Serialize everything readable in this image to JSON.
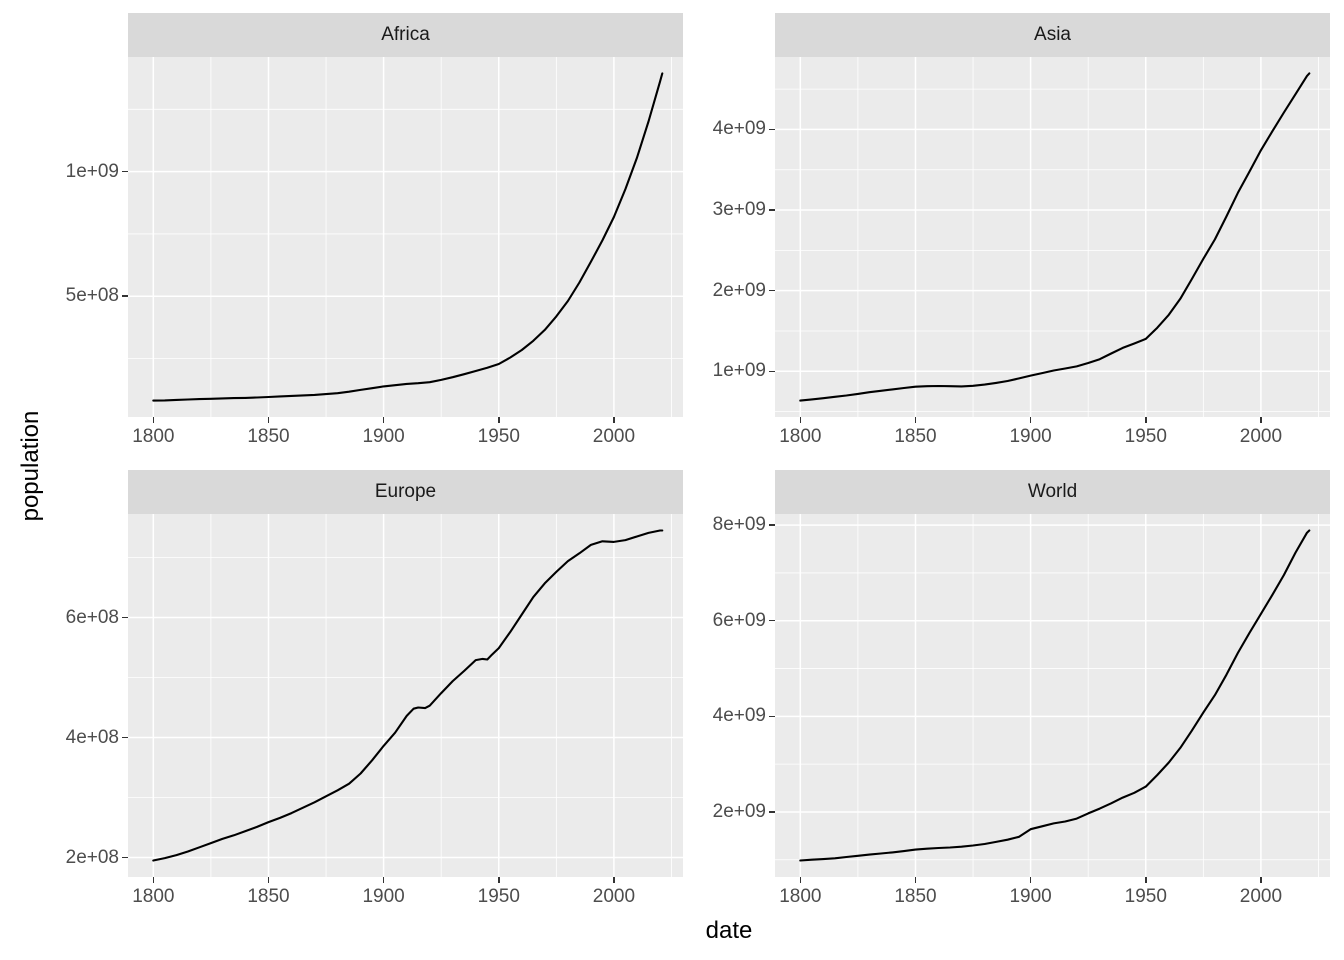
{
  "figure": {
    "y_axis_title": "population",
    "x_axis_title": "date",
    "colors": {
      "background": "#ffffff",
      "panel_bg": "#ebebeb",
      "strip_bg": "#d9d9d9",
      "grid": "#ffffff",
      "line": "#000000",
      "tick_mark": "#333333",
      "tick_text": "#4d4d4d",
      "strip_text": "#1a1a1a",
      "axis_title_text": "#000000"
    }
  },
  "chart_data": [
    {
      "type": "line",
      "title": "Africa",
      "xlabel": "date",
      "ylabel": "population",
      "grid": true,
      "legend": "none",
      "xlim": [
        1789,
        2030
      ],
      "ylim": [
        15300000,
        1460000000
      ],
      "x_ticks": {
        "values": [
          1800,
          1850,
          1900,
          1950,
          2000
        ],
        "labels": [
          "1800",
          "1850",
          "1900",
          "1950",
          "2000"
        ]
      },
      "x_minor_ticks": [
        1825,
        1875,
        1925,
        1975,
        2025
      ],
      "y_ticks": {
        "values": [
          500000000,
          1000000000
        ],
        "labels": [
          "5e+08",
          "1e+09"
        ]
      },
      "y_minor_ticks": [
        250000000,
        750000000,
        1250000000
      ],
      "x": [
        1800,
        1805,
        1810,
        1815,
        1820,
        1825,
        1830,
        1835,
        1840,
        1845,
        1850,
        1855,
        1860,
        1865,
        1870,
        1875,
        1880,
        1885,
        1890,
        1895,
        1900,
        1905,
        1910,
        1915,
        1920,
        1925,
        1930,
        1935,
        1940,
        1945,
        1950,
        1955,
        1960,
        1965,
        1970,
        1975,
        1980,
        1985,
        1990,
        1995,
        2000,
        2005,
        2010,
        2015,
        2020,
        2021
      ],
      "values": [
        81000000,
        82000000,
        84000000,
        85500000,
        87000000,
        88500000,
        90000000,
        91000000,
        92000000,
        93500000,
        95500000,
        98000000,
        100000000,
        102000000,
        104000000,
        107000000,
        111000000,
        117000000,
        124000000,
        131000000,
        138000000,
        143000000,
        148000000,
        151000000,
        155000000,
        164000000,
        175000000,
        187000000,
        200000000,
        213000000,
        228000000,
        254000000,
        284000000,
        321000000,
        365000000,
        419000000,
        481000000,
        555000000,
        638000000,
        724000000,
        818000000,
        930000000,
        1055000000,
        1201000000,
        1361000000,
        1394000000
      ]
    },
    {
      "type": "line",
      "title": "Asia",
      "xlabel": "date",
      "ylabel": "population",
      "grid": true,
      "legend": "none",
      "xlim": [
        1789,
        2030
      ],
      "ylim": [
        433000000,
        4898000000
      ],
      "x_ticks": {
        "values": [
          1800,
          1850,
          1900,
          1950,
          2000
        ],
        "labels": [
          "1800",
          "1850",
          "1900",
          "1950",
          "2000"
        ]
      },
      "x_minor_ticks": [
        1825,
        1875,
        1925,
        1975,
        2025
      ],
      "y_ticks": {
        "values": [
          1000000000,
          2000000000,
          3000000000,
          4000000000
        ],
        "labels": [
          "1e+09",
          "2e+09",
          "3e+09",
          "4e+09"
        ]
      },
      "y_minor_ticks": [
        500000000,
        1500000000,
        2500000000,
        3500000000,
        4500000000
      ],
      "x": [
        1800,
        1805,
        1810,
        1815,
        1820,
        1825,
        1830,
        1835,
        1840,
        1845,
        1850,
        1855,
        1860,
        1865,
        1870,
        1875,
        1880,
        1885,
        1890,
        1895,
        1900,
        1905,
        1910,
        1915,
        1920,
        1925,
        1930,
        1935,
        1940,
        1945,
        1950,
        1955,
        1960,
        1965,
        1970,
        1975,
        1980,
        1985,
        1990,
        1995,
        2000,
        2005,
        2010,
        2015,
        2020,
        2021
      ],
      "values": [
        636000000,
        651000000,
        666000000,
        683000000,
        700000000,
        720000000,
        740000000,
        758000000,
        775000000,
        793000000,
        809000000,
        815000000,
        818000000,
        815000000,
        812000000,
        820000000,
        835000000,
        856000000,
        880000000,
        912000000,
        947000000,
        978000000,
        1010000000,
        1035000000,
        1060000000,
        1103000000,
        1150000000,
        1220000000,
        1290000000,
        1345000000,
        1402000000,
        1541000000,
        1700000000,
        1899000000,
        2143000000,
        2394000000,
        2636000000,
        2920000000,
        3214000000,
        3475000000,
        3741000000,
        3978000000,
        4210000000,
        4437000000,
        4664000000,
        4695000000
      ]
    },
    {
      "type": "line",
      "title": "Europe",
      "xlabel": "date",
      "ylabel": "population",
      "grid": true,
      "legend": "none",
      "xlim": [
        1789,
        2030
      ],
      "ylim": [
        167500000,
        772500000
      ],
      "x_ticks": {
        "values": [
          1800,
          1850,
          1900,
          1950,
          2000
        ],
        "labels": [
          "1800",
          "1850",
          "1900",
          "1950",
          "2000"
        ]
      },
      "x_minor_ticks": [
        1825,
        1875,
        1925,
        1975,
        2025
      ],
      "y_ticks": {
        "values": [
          200000000,
          400000000,
          600000000
        ],
        "labels": [
          "2e+08",
          "4e+08",
          "6e+08"
        ]
      },
      "y_minor_ticks": [
        300000000,
        500000000,
        700000000
      ],
      "x": [
        1800,
        1805,
        1810,
        1815,
        1820,
        1825,
        1830,
        1835,
        1840,
        1845,
        1850,
        1855,
        1860,
        1865,
        1870,
        1875,
        1880,
        1885,
        1890,
        1895,
        1900,
        1905,
        1910,
        1913,
        1915,
        1918,
        1920,
        1925,
        1930,
        1935,
        1940,
        1943,
        1945,
        1947,
        1950,
        1955,
        1960,
        1965,
        1970,
        1975,
        1980,
        1985,
        1990,
        1995,
        2000,
        2005,
        2010,
        2015,
        2020,
        2021
      ],
      "values": [
        195000000,
        199000000,
        204000000,
        210000000,
        217000000,
        224000000,
        231000000,
        237000000,
        244000000,
        251000000,
        259000000,
        266000000,
        274000000,
        283000000,
        292000000,
        302000000,
        312000000,
        323000000,
        340000000,
        362000000,
        386000000,
        408000000,
        436000000,
        448000000,
        450000000,
        449000000,
        453000000,
        474000000,
        494000000,
        511000000,
        529000000,
        531000000,
        530000000,
        538000000,
        549000000,
        576000000,
        605000000,
        634000000,
        657000000,
        676000000,
        694000000,
        707000000,
        721000000,
        727000000,
        726000000,
        729000000,
        735000000,
        741000000,
        745000000,
        745000000
      ]
    },
    {
      "type": "line",
      "title": "World",
      "xlabel": "date",
      "ylabel": "population",
      "grid": true,
      "legend": "none",
      "xlim": [
        1789,
        2030
      ],
      "ylim": [
        639000000,
        8233000000
      ],
      "x_ticks": {
        "values": [
          1800,
          1850,
          1900,
          1950,
          2000
        ],
        "labels": [
          "1800",
          "1850",
          "1900",
          "1950",
          "2000"
        ]
      },
      "x_minor_ticks": [
        1825,
        1875,
        1925,
        1975,
        2025
      ],
      "y_ticks": {
        "values": [
          2000000000,
          4000000000,
          6000000000,
          8000000000
        ],
        "labels": [
          "2e+09",
          "4e+09",
          "6e+09",
          "8e+09"
        ]
      },
      "y_minor_ticks": [
        1000000000,
        3000000000,
        5000000000,
        7000000000
      ],
      "x": [
        1800,
        1805,
        1810,
        1815,
        1820,
        1825,
        1830,
        1835,
        1840,
        1845,
        1850,
        1855,
        1860,
        1865,
        1870,
        1875,
        1880,
        1885,
        1890,
        1895,
        1900,
        1905,
        1910,
        1915,
        1920,
        1925,
        1930,
        1935,
        1940,
        1945,
        1950,
        1955,
        1960,
        1965,
        1970,
        1975,
        1980,
        1985,
        1990,
        1995,
        2000,
        2005,
        2010,
        2015,
        2020,
        2021
      ],
      "values": [
        984000000,
        1000000000,
        1014000000,
        1030000000,
        1057000000,
        1082000000,
        1108000000,
        1130000000,
        1153000000,
        1180000000,
        1213000000,
        1230000000,
        1245000000,
        1257000000,
        1272000000,
        1298000000,
        1330000000,
        1373000000,
        1420000000,
        1480000000,
        1640000000,
        1700000000,
        1760000000,
        1800000000,
        1860000000,
        1970000000,
        2070000000,
        2180000000,
        2300000000,
        2400000000,
        2530000000,
        2773000000,
        3035000000,
        3340000000,
        3700000000,
        4079000000,
        4444000000,
        4870000000,
        5327000000,
        5744000000,
        6143000000,
        6542000000,
        6957000000,
        7426000000,
        7841000000,
        7888000000
      ]
    }
  ]
}
